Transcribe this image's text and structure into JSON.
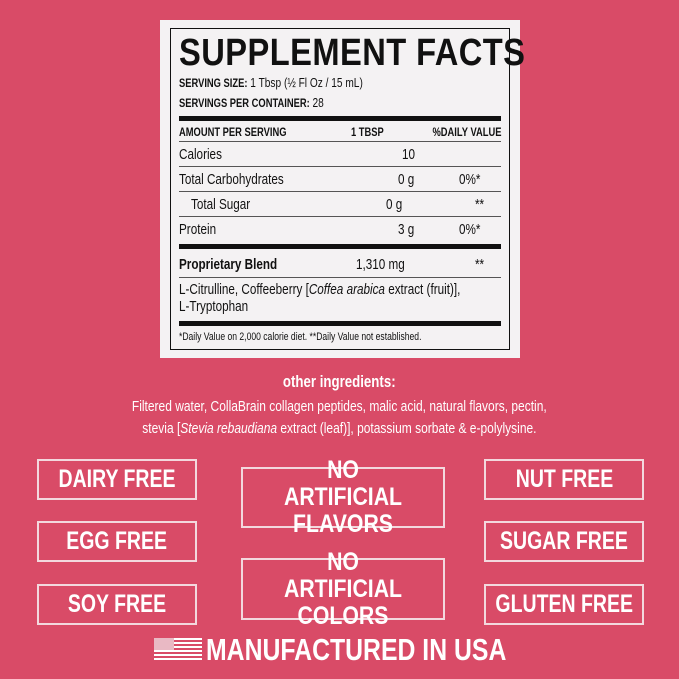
{
  "facts": {
    "title": "SUPPLEMENT FACTS",
    "serving_size_label": "SERVING SIZE:",
    "serving_size": "1 Tbsp (½ Fl Oz / 15 mL)",
    "servings_label": "SERVINGS PER CONTAINER:",
    "servings": "28",
    "header": [
      "AMOUNT PER SERVING",
      "1 TBSP",
      "%DAILY VALUE"
    ],
    "rows": [
      {
        "name": "Calories",
        "amount": "10",
        "dv": ""
      },
      {
        "name": "Total Carbohydrates",
        "amount": "0 g",
        "dv": "0%*"
      },
      {
        "name": "Total Sugar",
        "amount": "0 g",
        "dv": "**"
      },
      {
        "name": "Protein",
        "amount": "3 g",
        "dv": "0%*"
      }
    ],
    "blend": {
      "name": "Proprietary Blend",
      "amount": "1,310 mg",
      "dv": "**"
    },
    "blend_ingredients": {
      "a": "L-Citrulline, Coffeeberry [",
      "b": "Coffea arabica",
      "c": " extract (fruit)],",
      "d": "L-Tryptophan"
    },
    "footnote": "*Daily Value on 2,000 calorie diet. **Daily Value not established."
  },
  "other": {
    "heading": "other ingredients:",
    "line1": "Filtered water, CollaBrain collagen peptides, malic acid, natural flavors, pectin,",
    "line2a": "stevia [",
    "line2b": "Stevia rebaudiana",
    "line2c": " extract (leaf)], potassium sorbate & e-polylysine."
  },
  "badges": [
    "DAIRY FREE",
    "EGG FREE",
    "SOY FREE",
    "NO ARTIFICIAL FLAVORS",
    "NO ARTIFICIAL COLORS",
    "NUT FREE",
    "SUGAR FREE",
    "GLUTEN FREE"
  ],
  "made_in": "MANUFACTURED IN USA",
  "icons": {
    "flag": "us-flag-icon"
  },
  "colors": {
    "background": "#d94b67",
    "label": "#f4f2f3"
  }
}
